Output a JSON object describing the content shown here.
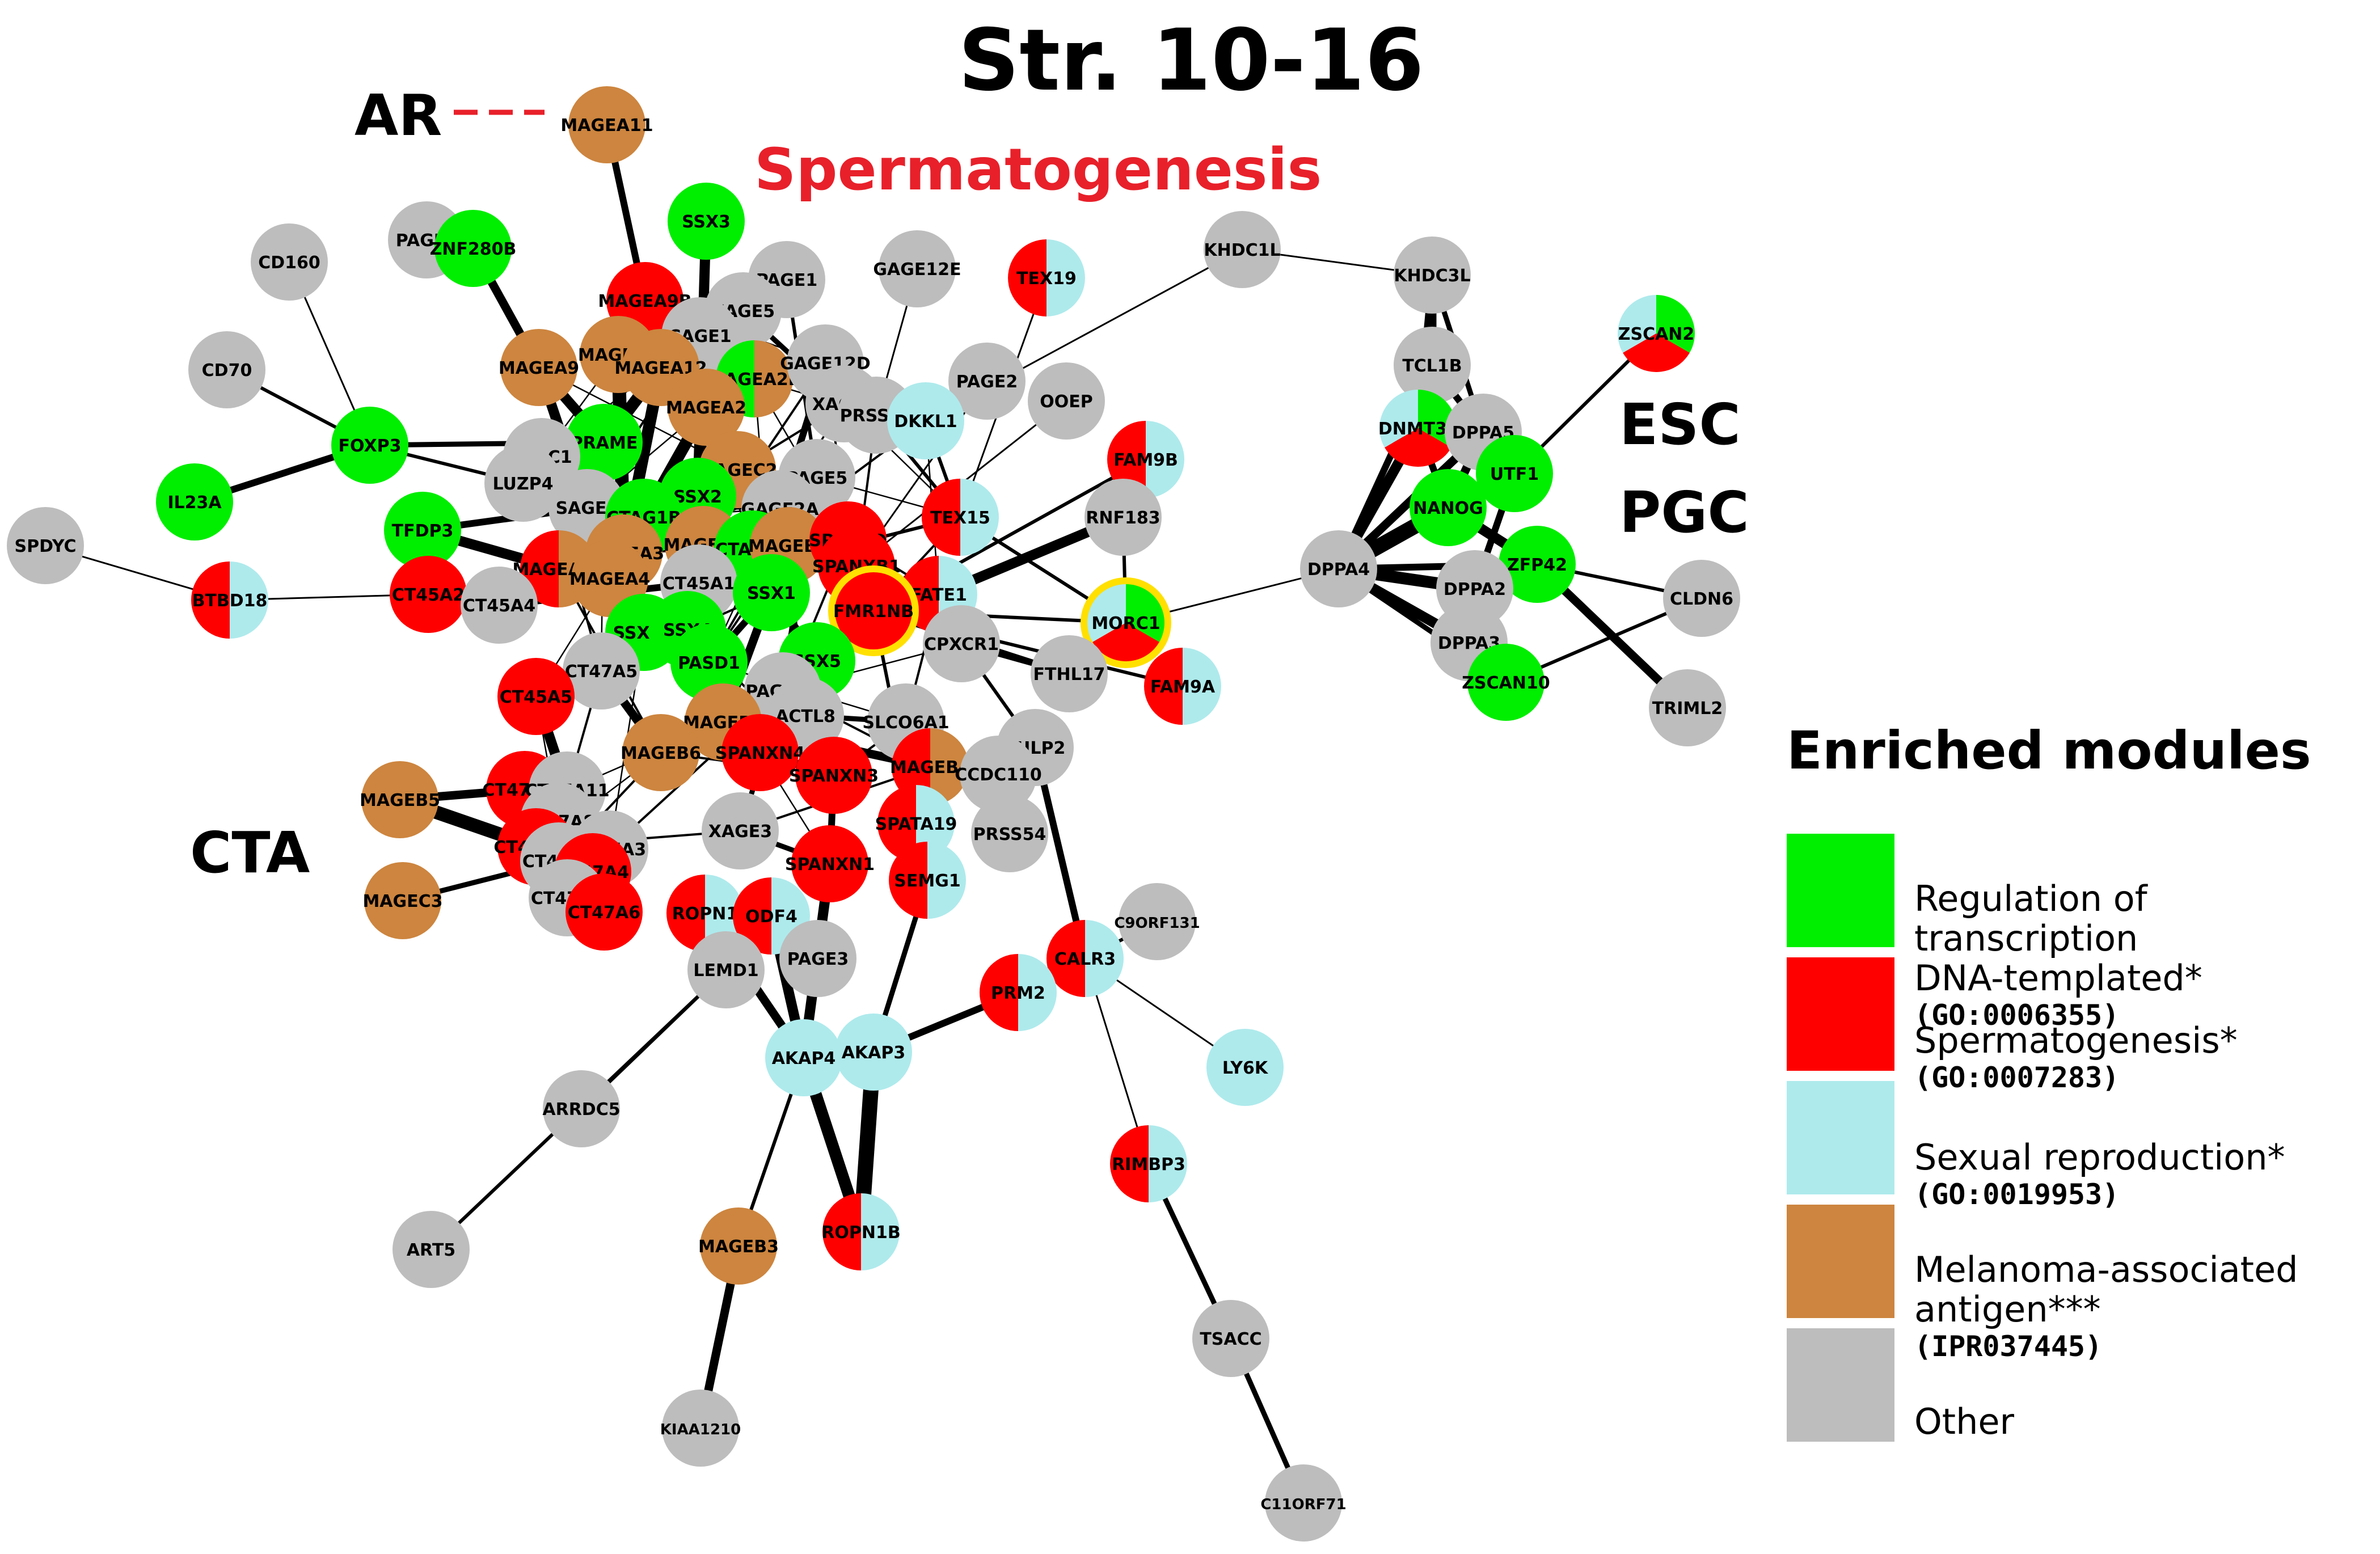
{
  "title": "Str. 10-16",
  "annotations": {
    "ar": "AR",
    "spermatogenesis": "Spermatogenesis",
    "esc": "ESC",
    "pgc": "PGC",
    "cta": "CTA"
  },
  "colors": {
    "green": "#00ee00",
    "red": "#ff0000",
    "cyan": "#aeeaec",
    "brown": "#cd853f",
    "gray": "#bdbdbd",
    "highlight": "#ffe000"
  },
  "legend": {
    "title": "Enriched modules",
    "items": [
      {
        "label": "Regulation of transcription\nDNA-templated*",
        "code": "(GO:0006355)",
        "color": "#00ee00"
      },
      {
        "label": "Spermatogenesis*",
        "code": "(GO:0007283)",
        "color": "#ff0000"
      },
      {
        "label": "Sexual reproduction*",
        "code": "(GO:0019953)",
        "color": "#aeeaec"
      },
      {
        "label": "Melanoma-associated\nantigen***",
        "code": "(IPR037445)",
        "color": "#cd853f"
      },
      {
        "label": "Other",
        "code": "",
        "color": "#bdbdbd"
      }
    ]
  },
  "nodes": [
    {
      "id": "MAGEA11",
      "c": [
        "brown"
      ]
    },
    {
      "id": "PAGE4",
      "c": [
        "gray"
      ]
    },
    {
      "id": "ZNF280B",
      "c": [
        "green"
      ]
    },
    {
      "id": "SSX3",
      "c": [
        "green"
      ]
    },
    {
      "id": "CD160",
      "c": [
        "gray"
      ]
    },
    {
      "id": "PAGE1",
      "c": [
        "gray"
      ]
    },
    {
      "id": "XAGE5",
      "c": [
        "gray"
      ]
    },
    {
      "id": "MAGEA9B",
      "c": [
        "red"
      ]
    },
    {
      "id": "GAGE12E",
      "c": [
        "gray"
      ]
    },
    {
      "id": "TEX19",
      "c": [
        "cyan",
        "red"
      ]
    },
    {
      "id": "KHDC1L",
      "c": [
        "gray"
      ]
    },
    {
      "id": "KHDC3L",
      "c": [
        "gray"
      ]
    },
    {
      "id": "CAGE1",
      "c": [
        "gray"
      ]
    },
    {
      "id": "CD70",
      "c": [
        "gray"
      ]
    },
    {
      "id": "MAGEA9",
      "c": [
        "brown"
      ]
    },
    {
      "id": "MAGEA6",
      "c": [
        "brown"
      ]
    },
    {
      "id": "MAGEA12",
      "c": [
        "brown"
      ]
    },
    {
      "id": "MAGEA2B",
      "c": [
        "brown",
        "green"
      ]
    },
    {
      "id": "GAGE12D",
      "c": [
        "gray"
      ]
    },
    {
      "id": "PAGE2",
      "c": [
        "gray"
      ]
    },
    {
      "id": "OOEP",
      "c": [
        "gray"
      ]
    },
    {
      "id": "ZSCAN2",
      "c": [
        "green",
        "red",
        "cyan"
      ]
    },
    {
      "id": "TCL1B",
      "c": [
        "gray"
      ]
    },
    {
      "id": "MAGEA2",
      "c": [
        "brown"
      ]
    },
    {
      "id": "XAGE2",
      "c": [
        "gray"
      ]
    },
    {
      "id": "PRSS50",
      "c": [
        "gray"
      ]
    },
    {
      "id": "DKKL1",
      "c": [
        "cyan"
      ]
    },
    {
      "id": "FOXP3",
      "c": [
        "green"
      ]
    },
    {
      "id": "PRAME",
      "c": [
        "green"
      ]
    },
    {
      "id": "PLAC1",
      "c": [
        "gray"
      ]
    },
    {
      "id": "DNMT3L",
      "c": [
        "green",
        "red",
        "cyan"
      ]
    },
    {
      "id": "DPPA5",
      "c": [
        "gray"
      ]
    },
    {
      "id": "MAGEC2",
      "c": [
        "brown"
      ]
    },
    {
      "id": "LUZP4",
      "c": [
        "gray"
      ]
    },
    {
      "id": "PAGE5",
      "c": [
        "gray"
      ]
    },
    {
      "id": "FAM9B",
      "c": [
        "cyan",
        "red"
      ]
    },
    {
      "id": "UTF1",
      "c": [
        "green"
      ]
    },
    {
      "id": "IL23A",
      "c": [
        "green"
      ]
    },
    {
      "id": "SAGE1",
      "c": [
        "gray"
      ]
    },
    {
      "id": "SSX2",
      "c": [
        "green"
      ]
    },
    {
      "id": "GAGE2A",
      "c": [
        "gray"
      ]
    },
    {
      "id": "NANOG",
      "c": [
        "green"
      ]
    },
    {
      "id": "CTAG1B",
      "c": [
        "green"
      ]
    },
    {
      "id": "TEX15",
      "c": [
        "cyan",
        "red"
      ]
    },
    {
      "id": "RNF183",
      "c": [
        "gray"
      ]
    },
    {
      "id": "TFDP3",
      "c": [
        "green"
      ]
    },
    {
      "id": "MAGEC1",
      "c": [
        "brown"
      ]
    },
    {
      "id": "CTAG1A",
      "c": [
        "green"
      ]
    },
    {
      "id": "MAGEB2",
      "c": [
        "brown"
      ]
    },
    {
      "id": "SPANXD",
      "c": [
        "red"
      ]
    },
    {
      "id": "SPDYC",
      "c": [
        "gray"
      ]
    },
    {
      "id": "MAGEA3",
      "c": [
        "brown"
      ]
    },
    {
      "id": "SPANXB1",
      "c": [
        "red"
      ]
    },
    {
      "id": "MAGEA10",
      "c": [
        "brown",
        "red"
      ]
    },
    {
      "id": "FATE1",
      "c": [
        "cyan",
        "red"
      ]
    },
    {
      "id": "DPPA4",
      "c": [
        "gray"
      ]
    },
    {
      "id": "ZFP42",
      "c": [
        "green"
      ]
    },
    {
      "id": "MAGEA4",
      "c": [
        "brown"
      ]
    },
    {
      "id": "CT45A1",
      "c": [
        "gray"
      ]
    },
    {
      "id": "SSX1",
      "c": [
        "green"
      ]
    },
    {
      "id": "FMR1NB",
      "c": [
        "red"
      ],
      "highlight": true
    },
    {
      "id": "CT45A2",
      "c": [
        "red"
      ]
    },
    {
      "id": "CT45A4",
      "c": [
        "gray"
      ]
    },
    {
      "id": "DPPA2",
      "c": [
        "gray"
      ]
    },
    {
      "id": "BTBD18",
      "c": [
        "cyan",
        "red"
      ]
    },
    {
      "id": "MORC1",
      "c": [
        "green",
        "red",
        "cyan"
      ],
      "highlight": true
    },
    {
      "id": "CLDN6",
      "c": [
        "gray"
      ]
    },
    {
      "id": "SSX4B",
      "c": [
        "green"
      ]
    },
    {
      "id": "SSX4",
      "c": [
        "green"
      ]
    },
    {
      "id": "CPXCR1",
      "c": [
        "gray"
      ]
    },
    {
      "id": "PASD1",
      "c": [
        "green"
      ]
    },
    {
      "id": "SSX5",
      "c": [
        "green"
      ]
    },
    {
      "id": "DPPA3",
      "c": [
        "gray"
      ]
    },
    {
      "id": "CT47A5",
      "c": [
        "gray"
      ]
    },
    {
      "id": "FTHL17",
      "c": [
        "gray"
      ]
    },
    {
      "id": "FAM9A",
      "c": [
        "cyan",
        "red"
      ]
    },
    {
      "id": "ZSCAN10",
      "c": [
        "green"
      ]
    },
    {
      "id": "PAGE2B",
      "c": [
        "gray"
      ]
    },
    {
      "id": "CT45A5",
      "c": [
        "red"
      ]
    },
    {
      "id": "ACTL8",
      "c": [
        "gray"
      ]
    },
    {
      "id": "SLCO6A1",
      "c": [
        "gray"
      ]
    },
    {
      "id": "TRIML2",
      "c": [
        "gray"
      ]
    },
    {
      "id": "MAGEB1",
      "c": [
        "brown"
      ]
    },
    {
      "id": "TULP2",
      "c": [
        "gray"
      ]
    },
    {
      "id": "SPANXN4",
      "c": [
        "red"
      ]
    },
    {
      "id": "MAGEB6",
      "c": [
        "brown"
      ]
    },
    {
      "id": "MAGEB4",
      "c": [
        "brown",
        "red"
      ]
    },
    {
      "id": "CT47A12",
      "c": [
        "red"
      ]
    },
    {
      "id": "CT47A11",
      "c": [
        "gray"
      ]
    },
    {
      "id": "MAGEB5",
      "c": [
        "brown"
      ]
    },
    {
      "id": "SPANXN3",
      "c": [
        "red"
      ]
    },
    {
      "id": "CCDC110",
      "c": [
        "gray"
      ]
    },
    {
      "id": "CT47A8",
      "c": [
        "gray"
      ]
    },
    {
      "id": "CT47A10",
      "c": [
        "red"
      ]
    },
    {
      "id": "XAGE3",
      "c": [
        "gray"
      ]
    },
    {
      "id": "SPATA19",
      "c": [
        "cyan",
        "red"
      ]
    },
    {
      "id": "PRSS54",
      "c": [
        "gray"
      ]
    },
    {
      "id": "CT47A3",
      "c": [
        "gray"
      ]
    },
    {
      "id": "CT47A9",
      "c": [
        "gray"
      ]
    },
    {
      "id": "CT47A4",
      "c": [
        "red"
      ]
    },
    {
      "id": "SPANXN1",
      "c": [
        "red"
      ]
    },
    {
      "id": "SEMG1",
      "c": [
        "cyan",
        "red"
      ]
    },
    {
      "id": "MAGEC3",
      "c": [
        "brown"
      ]
    },
    {
      "id": "CT47A7",
      "c": [
        "gray"
      ]
    },
    {
      "id": "CT47A6",
      "c": [
        "red"
      ]
    },
    {
      "id": "ROPN1",
      "c": [
        "cyan",
        "red"
      ]
    },
    {
      "id": "ODF4",
      "c": [
        "cyan",
        "red"
      ]
    },
    {
      "id": "C9ORF131",
      "c": [
        "gray"
      ]
    },
    {
      "id": "CALR3",
      "c": [
        "cyan",
        "red"
      ]
    },
    {
      "id": "PAGE3",
      "c": [
        "gray"
      ]
    },
    {
      "id": "LEMD1",
      "c": [
        "gray"
      ]
    },
    {
      "id": "PRM2",
      "c": [
        "cyan",
        "red"
      ]
    },
    {
      "id": "AKAP4",
      "c": [
        "cyan"
      ]
    },
    {
      "id": "AKAP3",
      "c": [
        "cyan"
      ]
    },
    {
      "id": "LY6K",
      "c": [
        "cyan"
      ]
    },
    {
      "id": "ARRDC5",
      "c": [
        "gray"
      ]
    },
    {
      "id": "RIMBP3",
      "c": [
        "cyan",
        "red"
      ]
    },
    {
      "id": "ART5",
      "c": [
        "gray"
      ]
    },
    {
      "id": "MAGEB3",
      "c": [
        "brown"
      ]
    },
    {
      "id": "ROPN1B",
      "c": [
        "cyan",
        "red"
      ]
    },
    {
      "id": "TSACC",
      "c": [
        "gray"
      ]
    },
    {
      "id": "KIAA1210",
      "c": [
        "gray"
      ]
    },
    {
      "id": "C11ORF71",
      "c": [
        "gray"
      ]
    }
  ],
  "edges": [
    [
      "MAGEA11",
      "MAGEA9B",
      4
    ],
    [
      "ZNF280B",
      "PAGE4",
      3
    ],
    [
      "ZNF280B",
      "MAGEA9",
      5
    ],
    [
      "SSX3",
      "SSX2",
      6
    ],
    [
      "CD160",
      "FOXP3",
      1
    ],
    [
      "CD70",
      "FOXP3",
      2
    ],
    [
      "FOXP3",
      "IL23A",
      4
    ],
    [
      "FOXP3",
      "PRAME",
      3
    ],
    [
      "FOXP3",
      "LUZP4",
      2
    ],
    [
      "SPDYC",
      "BTBD18",
      1
    ],
    [
      "BTBD18",
      "CT45A2",
      1
    ],
    [
      "GAGE12E",
      "PRSS50",
      1
    ],
    [
      "TEX19",
      "TEX15",
      1
    ],
    [
      "KHDC1L",
      "DKKL1",
      1
    ],
    [
      "KHDC1L",
      "KHDC3L",
      1
    ],
    [
      "KHDC3L",
      "TCL1B",
      5
    ],
    [
      "KHDC3L",
      "DNMT3L",
      4
    ],
    [
      "KHDC3L",
      "DPPA5",
      3
    ],
    [
      "ZSCAN2",
      "UTF1",
      2
    ],
    [
      "TCL1B",
      "DPPA4",
      4
    ],
    [
      "TCL1B",
      "DPPA5",
      4
    ],
    [
      "DNMT3L",
      "DPPA4",
      6
    ],
    [
      "DNMT3L",
      "NANOG",
      4
    ],
    [
      "DPPA5",
      "NANOG",
      5
    ],
    [
      "DPPA5",
      "DPPA4",
      5
    ],
    [
      "UTF1",
      "NANOG",
      6
    ],
    [
      "UTF1",
      "DPPA4",
      3
    ],
    [
      "NANOG",
      "DPPA4",
      9
    ],
    [
      "NANOG",
      "ZFP42",
      6
    ],
    [
      "DPPA4",
      "DPPA2",
      7
    ],
    [
      "DPPA4",
      "DPPA3",
      6
    ],
    [
      "DPPA4",
      "ZSCAN10",
      3
    ],
    [
      "DPPA4",
      "ZFP42",
      4
    ],
    [
      "ZFP42",
      "CLDN6",
      2
    ],
    [
      "ZFP42",
      "TRIML2",
      5
    ],
    [
      "DPPA2",
      "UTF1",
      4
    ],
    [
      "ZSCAN10",
      "CLDN6",
      2
    ],
    [
      "DPPA4",
      "MORC1",
      1
    ],
    [
      "MORC1",
      "FMR1NB",
      2
    ],
    [
      "MORC1",
      "RNF183",
      2
    ],
    [
      "MORC1",
      "TEX15",
      2
    ],
    [
      "FAM9B",
      "FMR1NB",
      2
    ],
    [
      "FAM9A",
      "FMR1NB",
      2
    ],
    [
      "FATE1",
      "RNF183",
      6
    ],
    [
      "TEX15",
      "CT45A1",
      2
    ],
    [
      "OOEP",
      "SPANXB1",
      1
    ],
    [
      "PAGE2",
      "SPANXB1",
      1
    ],
    [
      "CPXCR1",
      "TULP2",
      2
    ],
    [
      "TULP2",
      "CALR3",
      4
    ],
    [
      "CALR3",
      "C9ORF131",
      2
    ],
    [
      "CALR3",
      "LY6K",
      1
    ],
    [
      "CALR3",
      "RIMBP3",
      1
    ],
    [
      "CALR3",
      "PRM2",
      2
    ],
    [
      "RIMBP3",
      "TSACC",
      3
    ],
    [
      "TSACC",
      "C11ORF71",
      3
    ],
    [
      "PRM2",
      "AKAP3",
      4
    ],
    [
      "AKAP3",
      "ROPN1B",
      9
    ],
    [
      "AKAP4",
      "ROPN1B",
      7
    ],
    [
      "AKAP4",
      "ROPN1",
      5
    ],
    [
      "AKAP4",
      "ODF4",
      6
    ],
    [
      "AKAP4",
      "SPANXN1",
      6
    ],
    [
      "AKAP3",
      "SEMG1",
      3
    ],
    [
      "AKAP4",
      "MAGEB3",
      2
    ],
    [
      "MAGEB3",
      "KIAA1210",
      5
    ],
    [
      "LEMD1",
      "ARRDC5",
      2
    ],
    [
      "LEMD1",
      "ART5",
      2
    ],
    [
      "LEMD1",
      "ROPN1",
      4
    ],
    [
      "PAGE3",
      "ODF4",
      3
    ],
    [
      "SPATA19",
      "SEMG1",
      3
    ],
    [
      "MAGEB5",
      "CT47A10",
      8
    ],
    [
      "MAGEB5",
      "CT47A12",
      5
    ],
    [
      "MAGEC3",
      "CT47A9",
      3
    ],
    [
      "MAGEB6",
      "CT47A5",
      5
    ],
    [
      "CT45A5",
      "CT47A5",
      5
    ],
    [
      "CT45A5",
      "CT47A11",
      6
    ],
    [
      "CT45A2",
      "CT45A4",
      5
    ],
    [
      "TFDP3",
      "MAGEA10",
      6
    ],
    [
      "TFDP3",
      "SAGE1",
      4
    ],
    [
      "PRAME",
      "MAGEA9",
      6
    ],
    [
      "PRAME",
      "MAGEA12",
      7
    ],
    [
      "PLAC1",
      "LUZP4",
      4
    ],
    [
      "MAGEA6",
      "MAGEA3",
      8
    ],
    [
      "MAGEA12",
      "MAGEA3",
      7
    ],
    [
      "MAGEA2",
      "MAGEA2B",
      8
    ],
    [
      "MAGEA2",
      "MAGEA3",
      7
    ],
    [
      "MAGEA9B",
      "MAGEA6",
      6
    ],
    [
      "MAGEA9",
      "MAGEA4",
      6
    ],
    [
      "MAGEC2",
      "MAGEC1",
      6
    ],
    [
      "CTAG1B",
      "CTAG1A",
      8
    ],
    [
      "SSX2",
      "SSX1",
      6
    ],
    [
      "SSX2",
      "SSX4",
      5
    ],
    [
      "SSX4",
      "SSX4B",
      6
    ],
    [
      "SSX1",
      "SSX5",
      5
    ],
    [
      "SSX1",
      "PASD1",
      4
    ],
    [
      "PAGE5",
      "PAGE2B",
      4
    ],
    [
      "GAGE2A",
      "GAGE12D",
      4
    ],
    [
      "XAGE5",
      "XAGE2",
      3
    ],
    [
      "PAGE1",
      "PAGE5",
      2
    ],
    [
      "CAGE1",
      "MAGEA2",
      2
    ],
    [
      "SPANXD",
      "SPANXB1",
      6
    ],
    [
      "SPANXN4",
      "SPANXN3",
      5
    ],
    [
      "SPANXN3",
      "SPANXN1",
      4
    ],
    [
      "MAGEB1",
      "MAGEB2",
      5
    ],
    [
      "MAGEB4",
      "MAGEB1",
      5
    ],
    [
      "ACTL8",
      "SLCO6A1",
      3
    ],
    [
      "CCDC110",
      "PRSS54",
      3
    ],
    [
      "CT47A8",
      "CT47A3",
      5
    ],
    [
      "CT47A4",
      "CT47A6",
      6
    ],
    [
      "CT47A7",
      "CT47A6",
      6
    ],
    [
      "CT45A1",
      "CT45A4",
      4
    ],
    [
      "FTHL17",
      "CPXCR1",
      3
    ],
    [
      "FATE1",
      "CPXCR1",
      2
    ],
    [
      "XAGE3",
      "PAGE2B",
      3
    ],
    [
      "XAGE3",
      "SPANXN1",
      3
    ],
    [
      "DKKL1",
      "TEX15",
      2
    ],
    [
      "PRSS50",
      "TEX15",
      2
    ],
    [
      "FTHL17",
      "FMR1NB",
      3
    ],
    [
      "SEMG1",
      "FMR1NB",
      2
    ]
  ]
}
